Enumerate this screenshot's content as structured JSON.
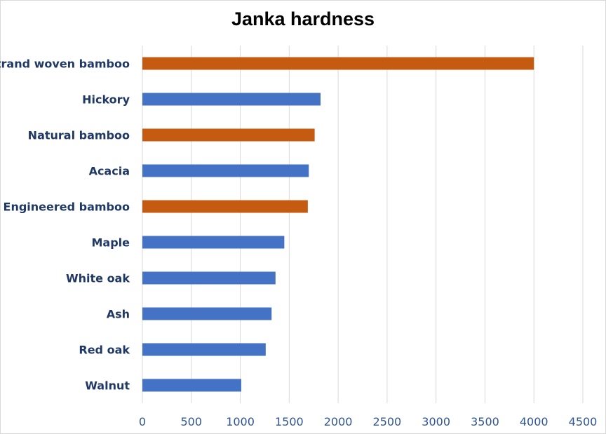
{
  "chart_data": {
    "type": "bar",
    "orientation": "horizontal",
    "title": "Janka hardness",
    "categories": [
      "Strand woven bamboo",
      "Hickory",
      "Natural bamboo",
      "Acacia",
      "Engineered bamboo",
      "Maple",
      "White oak",
      "Ash",
      "Red oak",
      "Walnut"
    ],
    "values": [
      4000,
      1820,
      1760,
      1700,
      1690,
      1450,
      1360,
      1320,
      1260,
      1010
    ],
    "bar_colors": [
      "#c55a11",
      "#4472c4",
      "#c55a11",
      "#4472c4",
      "#c55a11",
      "#4472c4",
      "#4472c4",
      "#4472c4",
      "#4472c4",
      "#4472c4"
    ],
    "xlim": [
      0,
      4500
    ],
    "xticks": [
      "0",
      "500",
      "1000",
      "1500",
      "2000",
      "2500",
      "3000",
      "3500",
      "4000",
      "4500"
    ],
    "xlabel": "",
    "ylabel": "",
    "grid": "vertical",
    "legend": "none"
  }
}
